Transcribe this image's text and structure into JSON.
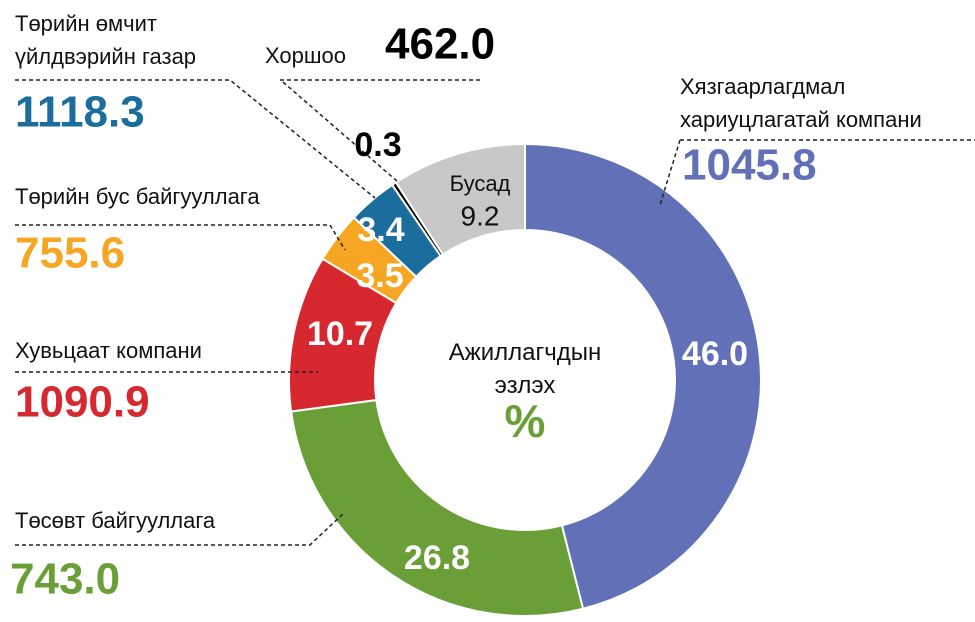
{
  "chart_data": {
    "type": "donut",
    "categories": [
      "Хязгаарлагдмал\nхариуцлагатай компани",
      "Төсөвт байгууллага",
      "Хувьцаат компани",
      "Төрийн бус байгууллага",
      "Төрийн өмчит\nүйлдвэрийн газар",
      "Хоршоо",
      "Бусад"
    ],
    "values": [
      46.0,
      26.8,
      10.7,
      3.5,
      3.4,
      0.3,
      9.2
    ],
    "value_labels": [
      "46.0",
      "26.8",
      "10.7",
      "3.5",
      "3.4",
      "0.3",
      "9.2"
    ],
    "colors": [
      "#6271b7",
      "#6a9f38",
      "#d6282e",
      "#f6a623",
      "#1b6d9e",
      "#000000",
      "#c8c8c8"
    ],
    "amount_labels": [
      "1045.8",
      "743.0",
      "1090.9",
      "755.6",
      "1118.3",
      "462.0",
      null
    ],
    "center_label": "Ажиллагчдын\nэзлэх",
    "center_unit": "%"
  }
}
